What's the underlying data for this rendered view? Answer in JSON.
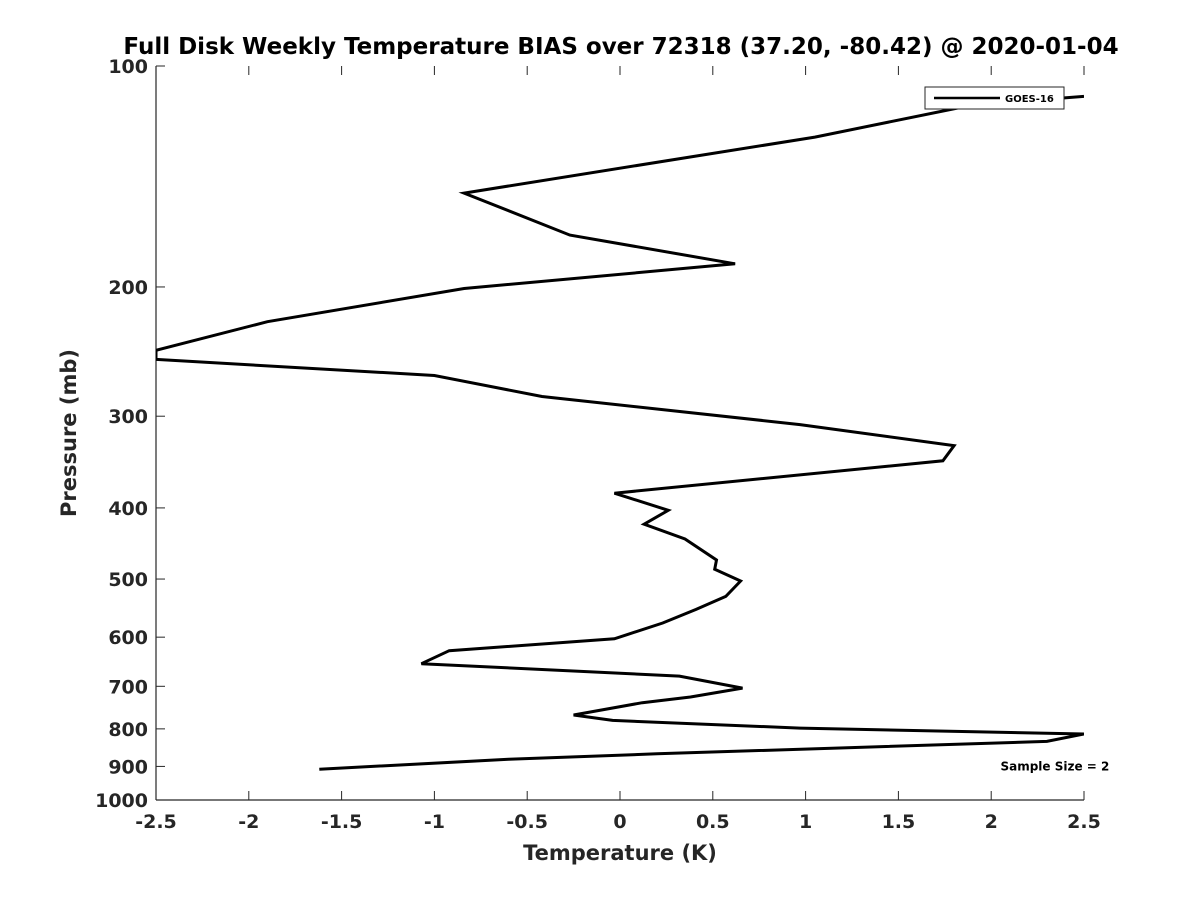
{
  "chart_data": {
    "type": "line",
    "title": "Full Disk Weekly Temperature BIAS over 72318 (37.20, -80.42) @ 2020-01-04",
    "xlabel": "Temperature (K)",
    "ylabel": "Pressure (mb)",
    "xlim": [
      -2.5,
      2.5
    ],
    "ylim": [
      1000,
      100
    ],
    "yscale": "log",
    "y_reversed": true,
    "grid": false,
    "xticks": [
      -2.5,
      -2,
      -1.5,
      -1,
      -0.5,
      0,
      0.5,
      1,
      1.5,
      2,
      2.5
    ],
    "xtick_labels": [
      "-2.5",
      "-2",
      "-1.5",
      "-1",
      "-0.5",
      "0",
      "0.5",
      "1",
      "1.5",
      "2",
      "2.5"
    ],
    "yticks": [
      100,
      200,
      300,
      400,
      500,
      600,
      700,
      800,
      900,
      1000
    ],
    "ytick_labels": [
      "100",
      "200",
      "300",
      "400",
      "500",
      "600",
      "700",
      "800",
      "900",
      "1000"
    ],
    "legend_position": "top-right",
    "line_color": "#000000",
    "series": [
      {
        "name": "GOES-16",
        "x": [
          2.5,
          1.9,
          1.05,
          -0.84,
          -0.27,
          0.62,
          -0.84,
          -1.9,
          -2.5,
          -2.5,
          -1.0,
          -0.42,
          0.97,
          1.8,
          1.74,
          -0.03,
          0.26,
          0.13,
          0.35,
          0.52,
          0.51,
          0.65,
          0.57,
          0.41,
          0.23,
          -0.03,
          -0.92,
          -1.07,
          0.32,
          0.66,
          0.38,
          0.12,
          -0.25,
          -0.04,
          0.97,
          2.5,
          2.3,
          0.2,
          -0.6,
          -1.62
        ],
        "y": [
          110,
          113,
          125,
          149,
          170,
          186,
          201,
          223,
          244,
          251,
          264,
          282,
          308,
          329,
          345,
          382,
          403,
          421,
          441,
          471,
          485,
          503,
          528,
          550,
          574,
          603,
          626,
          652,
          678,
          704,
          724,
          737,
          766,
          779,
          798,
          813,
          832,
          865,
          880,
          908
        ]
      }
    ],
    "annotations": [
      {
        "text": "Sample Size = 2",
        "x": 2.05,
        "y": 900
      }
    ]
  }
}
